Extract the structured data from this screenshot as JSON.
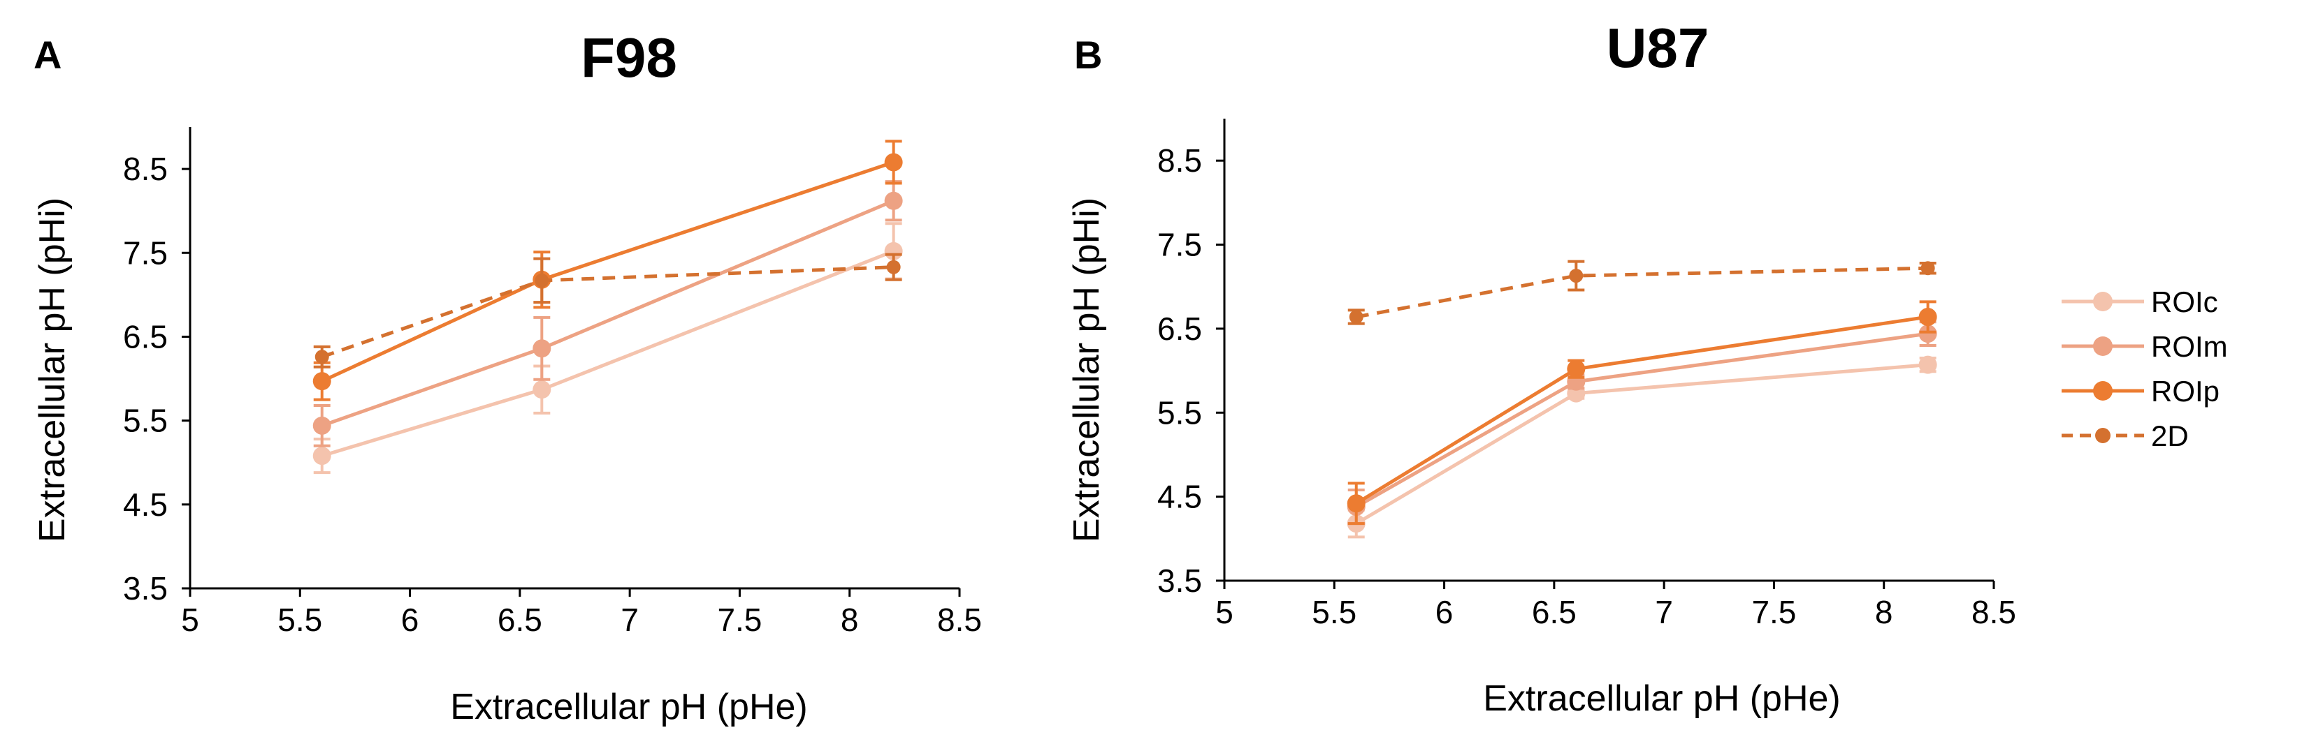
{
  "chart_data": [
    {
      "type": "line",
      "panel_label": "A",
      "title": "F98",
      "xlabel": "Extracellular pH (pHe)",
      "ylabel": "Extracellular pH (pHi)",
      "xlim": [
        5,
        8.5
      ],
      "ylim": [
        3.5,
        9.0
      ],
      "xticks": [
        "5",
        "5.5",
        "6",
        "6.5",
        "7",
        "7.5",
        "8",
        "8.5"
      ],
      "yticks": [
        "3.5",
        "4.5",
        "5.5",
        "6.5",
        "7.5",
        "8.5"
      ],
      "x": [
        5.6,
        6.6,
        8.2
      ],
      "series": [
        {
          "name": "ROIc",
          "values": [
            5.08,
            5.87,
            7.52
          ],
          "errors": [
            0.2,
            0.28,
            0.33
          ]
        },
        {
          "name": "ROIm",
          "values": [
            5.44,
            6.36,
            8.12
          ],
          "errors": [
            0.24,
            0.37,
            0.23
          ]
        },
        {
          "name": "ROIp",
          "values": [
            5.97,
            7.18,
            8.58
          ],
          "errors": [
            0.22,
            0.33,
            0.25
          ]
        },
        {
          "name": "2D",
          "values": [
            6.26,
            7.17,
            7.33
          ],
          "errors": [
            0.12,
            0.26,
            0.15
          ]
        }
      ]
    },
    {
      "type": "line",
      "panel_label": "B",
      "title": "U87",
      "xlabel": "Extracellular pH (pHe)",
      "ylabel": "Extracellular pH (pHi)",
      "xlim": [
        5,
        8.5
      ],
      "ylim": [
        3.5,
        9.0
      ],
      "xticks": [
        "5",
        "5.5",
        "6",
        "6.5",
        "7",
        "7.5",
        "8",
        "8.5"
      ],
      "yticks": [
        "3.5",
        "4.5",
        "5.5",
        "6.5",
        "7.5",
        "8.5"
      ],
      "x": [
        5.6,
        6.6,
        8.2
      ],
      "series": [
        {
          "name": "ROIc",
          "values": [
            4.18,
            5.73,
            6.07
          ],
          "errors": [
            0.16,
            0.06,
            0.08
          ]
        },
        {
          "name": "ROIm",
          "values": [
            4.38,
            5.87,
            6.44
          ],
          "errors": [
            0.2,
            0.08,
            0.14
          ]
        },
        {
          "name": "ROIp",
          "values": [
            4.42,
            6.02,
            6.64
          ],
          "errors": [
            0.24,
            0.1,
            0.18
          ]
        },
        {
          "name": "2D",
          "values": [
            6.64,
            7.13,
            7.22
          ],
          "errors": [
            0.08,
            0.17,
            0.06
          ]
        }
      ]
    }
  ],
  "legend": {
    "placement": "right",
    "items": [
      {
        "label": "ROIc",
        "color": "#f4c3ad",
        "style": "solid"
      },
      {
        "label": "ROIm",
        "color": "#eda283",
        "style": "solid"
      },
      {
        "label": "ROIp",
        "color": "#ec7c31",
        "style": "solid"
      },
      {
        "label": "2D",
        "color": "#d4712f",
        "style": "dashed"
      }
    ]
  }
}
